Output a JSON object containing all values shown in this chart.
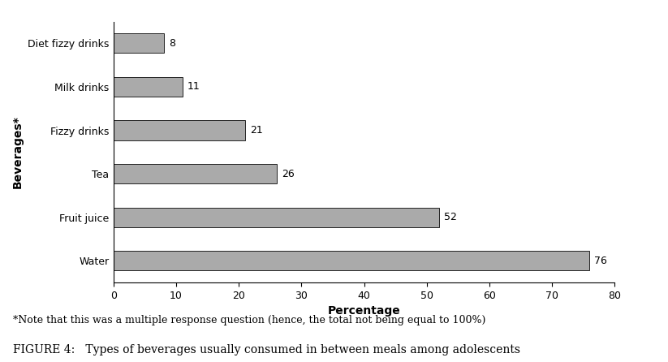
{
  "categories": [
    "Water",
    "Fruit juice",
    "Tea",
    "Fizzy drinks",
    "Milk drinks",
    "Diet fizzy drinks"
  ],
  "values": [
    76,
    52,
    26,
    21,
    11,
    8
  ],
  "bar_color": "#aaaaaa",
  "bar_edgecolor": "#222222",
  "xlabel": "Percentage",
  "ylabel": "Beverages*",
  "xlim": [
    0,
    80
  ],
  "xticks": [
    0,
    10,
    20,
    30,
    40,
    50,
    60,
    70,
    80
  ],
  "value_labels": [
    76,
    52,
    26,
    21,
    11,
    8
  ],
  "note": "*Note that this was a multiple response question (hence, the total not being equal to 100%)",
  "figure_caption": "FIGURE 4:   Types of beverages usually consumed in between meals among adolescents",
  "xlabel_fontsize": 10,
  "ylabel_fontsize": 10,
  "tick_fontsize": 9,
  "value_fontsize": 9,
  "note_fontsize": 9,
  "caption_fontsize": 10,
  "bar_height": 0.45
}
